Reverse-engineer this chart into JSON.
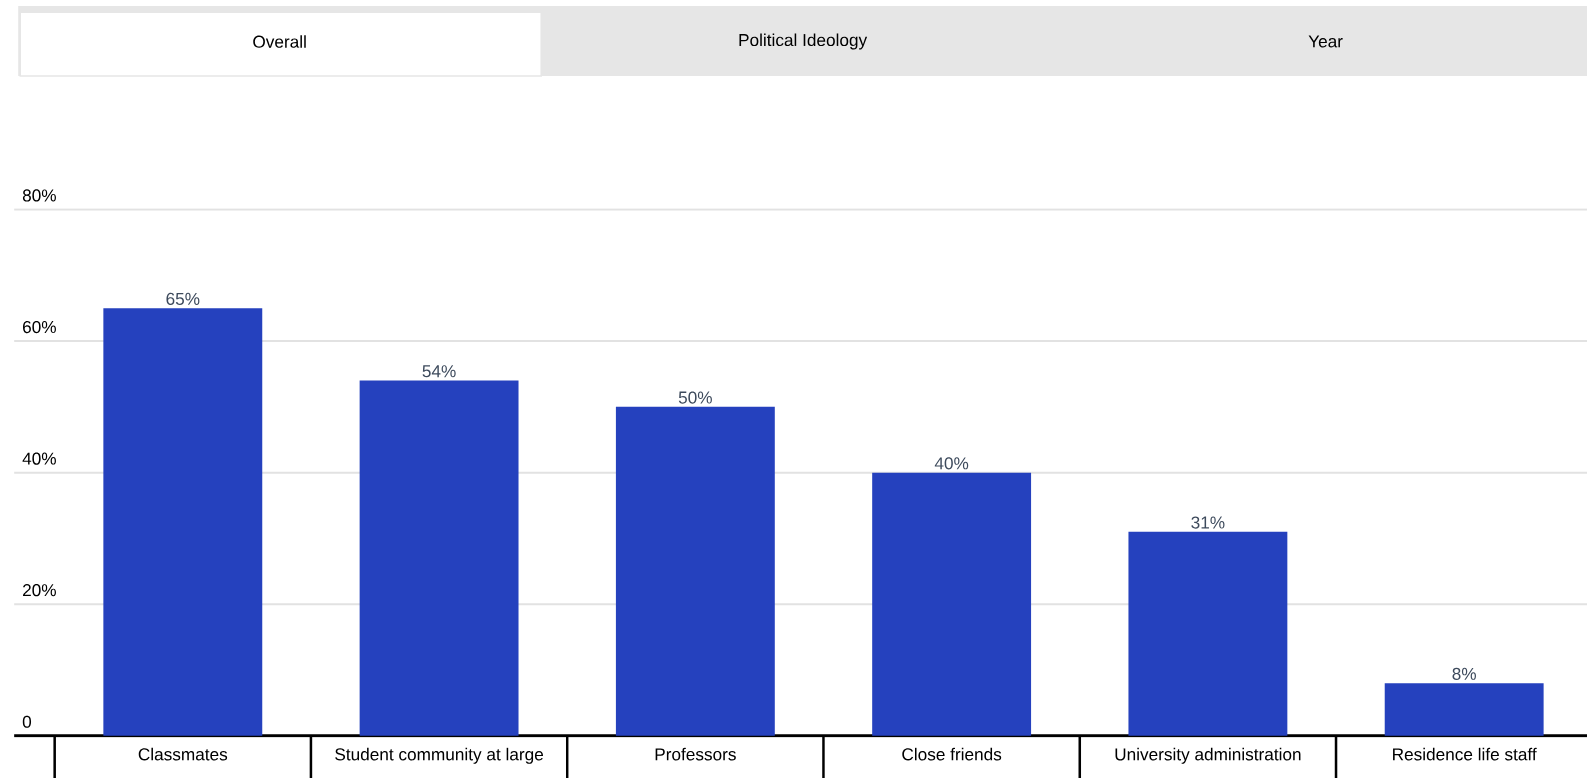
{
  "chart_data": {
    "type": "bar",
    "annotations": [
      "Overall",
      "Political Ideology",
      "Year"
    ],
    "categories": [
      "Classmates",
      "Student community at large",
      "Professors",
      "Close friends",
      "University administration",
      "Residence life staff"
    ],
    "values": [
      65,
      54,
      50,
      40,
      31,
      8
    ],
    "value_labels": [
      "65%",
      "54%",
      "50%",
      "40%",
      "31%",
      "8%"
    ],
    "color": "#2541be",
    "ylim": [
      0,
      80
    ],
    "yticks": [
      {
        "value": 0,
        "label": "0"
      },
      {
        "value": 20,
        "label": "20%"
      },
      {
        "value": 40,
        "label": "40%"
      },
      {
        "value": 60,
        "label": "60%"
      },
      {
        "value": 80,
        "label": "80%"
      }
    ],
    "grid": "y"
  }
}
